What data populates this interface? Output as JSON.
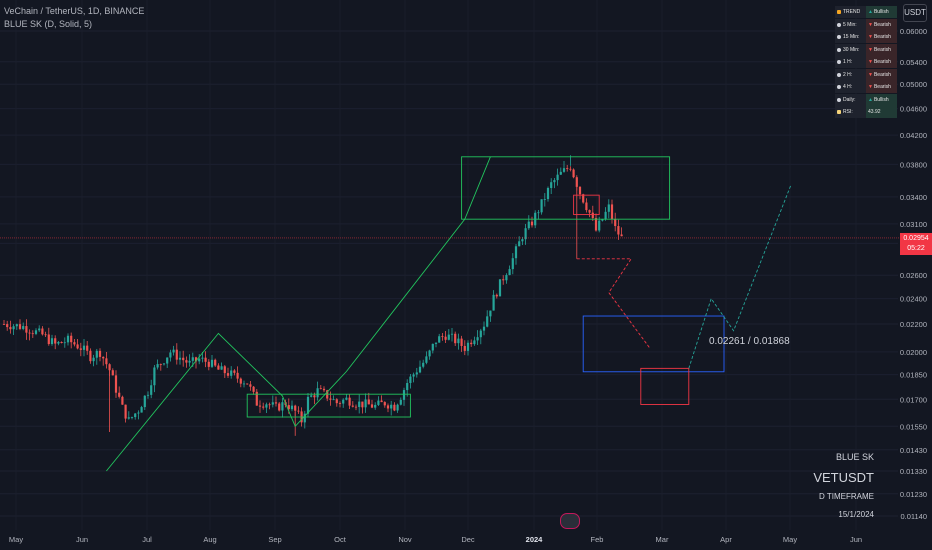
{
  "header": {
    "symbol_line": "VeChain / TetherUS, 1D, BINANCE",
    "indicator_line": "BLUE SK (D, Solid, 5)"
  },
  "currency_button": "USDT",
  "trend_table": [
    {
      "label": "TREND",
      "value": "Bullish",
      "state": "bull",
      "icon": "trend-icon"
    },
    {
      "label": "5 Min:",
      "value": "Bearish",
      "state": "bear",
      "icon": "clock-icon"
    },
    {
      "label": "15 Min:",
      "value": "Bearish",
      "state": "bear",
      "icon": "clock-icon"
    },
    {
      "label": "30 Min:",
      "value": "Bearish",
      "state": "bear",
      "icon": "clock-icon"
    },
    {
      "label": "1 H:",
      "value": "Bearish",
      "state": "bear",
      "icon": "clock-icon"
    },
    {
      "label": "2 H:",
      "value": "Bearish",
      "state": "bear",
      "icon": "clock-icon"
    },
    {
      "label": "4 H:",
      "value": "Bearish",
      "state": "bear",
      "icon": "clock-icon"
    },
    {
      "label": "Daily:",
      "value": "Bullish",
      "state": "bull",
      "icon": "clock-icon"
    },
    {
      "label": "RSI:",
      "value": "43.92",
      "state": "rsi",
      "icon": "hourglass-icon"
    }
  ],
  "current_price": {
    "value": "0.02954",
    "countdown": "05:22"
  },
  "zone_label": "0.02261 / 0.01868",
  "signature": {
    "brand": "BLUE SK",
    "ticker": "VETUSDT",
    "timeframe": "D TIMEFRAME",
    "date": "15/1/2024"
  },
  "colors": {
    "background": "#131722",
    "up": "#26a69a",
    "down": "#ef5350",
    "green_line": "#22c55e",
    "blue_box": "#2962ff",
    "red_box": "#f23645"
  },
  "chart_data": {
    "type": "candlestick",
    "y_axis": {
      "ticks": [
        "0.06000",
        "0.05400",
        "0.05000",
        "0.04600",
        "0.04200",
        "0.03800",
        "0.03400",
        "0.03100",
        "0.02900",
        "0.02600",
        "0.02400",
        "0.02200",
        "0.02000",
        "0.01850",
        "0.01700",
        "0.01550",
        "0.01430",
        "0.01330",
        "0.01230",
        "0.01140"
      ],
      "ylim": [
        0.0112,
        0.065
      ]
    },
    "x_axis": {
      "ticks": [
        "May",
        "Jun",
        "Jul",
        "Aug",
        "Sep",
        "Oct",
        "Nov",
        "Dec",
        "2024",
        "Feb",
        "Mar",
        "Apr",
        "May",
        "Jun"
      ],
      "bold_ticks": [
        "2024"
      ]
    },
    "close_path": [
      [
        0,
        0.022
      ],
      [
        6,
        0.0218
      ],
      [
        12,
        0.0212
      ],
      [
        16,
        0.0205
      ],
      [
        20,
        0.0208
      ],
      [
        24,
        0.0203
      ],
      [
        27,
        0.0197
      ],
      [
        30,
        0.02
      ],
      [
        33,
        0.0188
      ],
      [
        35,
        0.0176
      ],
      [
        37,
        0.0165
      ],
      [
        39,
        0.0158
      ],
      [
        42,
        0.0164
      ],
      [
        45,
        0.0175
      ],
      [
        47,
        0.0188
      ],
      [
        50,
        0.0195
      ],
      [
        52,
        0.02
      ],
      [
        55,
        0.0196
      ],
      [
        58,
        0.0192
      ],
      [
        61,
        0.0195
      ],
      [
        64,
        0.0193
      ],
      [
        67,
        0.0188
      ],
      [
        70,
        0.0186
      ],
      [
        73,
        0.0183
      ],
      [
        76,
        0.018
      ],
      [
        79,
        0.0168
      ],
      [
        82,
        0.0168
      ],
      [
        85,
        0.0165
      ],
      [
        88,
        0.0168
      ],
      [
        91,
        0.0163
      ],
      [
        93,
        0.0158
      ],
      [
        95,
        0.017
      ],
      [
        98,
        0.0175
      ],
      [
        101,
        0.0172
      ],
      [
        104,
        0.0168
      ],
      [
        107,
        0.017
      ],
      [
        110,
        0.0168
      ],
      [
        113,
        0.0167
      ],
      [
        116,
        0.0166
      ],
      [
        119,
        0.0168
      ],
      [
        122,
        0.0166
      ],
      [
        124,
        0.0172
      ],
      [
        126,
        0.018
      ],
      [
        129,
        0.0188
      ],
      [
        132,
        0.0195
      ],
      [
        135,
        0.0208
      ],
      [
        138,
        0.0212
      ],
      [
        141,
        0.0208
      ],
      [
        144,
        0.0203
      ],
      [
        147,
        0.0211
      ],
      [
        150,
        0.022
      ],
      [
        153,
        0.024
      ],
      [
        156,
        0.0258
      ],
      [
        159,
        0.0275
      ],
      [
        162,
        0.0298
      ],
      [
        165,
        0.0312
      ],
      [
        168,
        0.0332
      ],
      [
        171,
        0.0355
      ],
      [
        174,
        0.0368
      ],
      [
        177,
        0.0378
      ],
      [
        180,
        0.0345
      ],
      [
        183,
        0.0322
      ],
      [
        185,
        0.0303
      ],
      [
        187,
        0.0315
      ],
      [
        189,
        0.0328
      ],
      [
        191,
        0.0305
      ],
      [
        193,
        0.0295
      ]
    ],
    "candle_wicks": {
      "low_spikes": [
        [
          33,
          0.0152
        ],
        [
          91,
          0.015
        ],
        [
          179,
          0.0275
        ]
      ],
      "high_spikes": [
        [
          177,
          0.0392
        ]
      ]
    },
    "annotations": {
      "price_line": 0.02954,
      "green_zigzag": [
        [
          32,
          0.0133
        ],
        [
          67,
          0.0213
        ],
        [
          87,
          0.0172
        ],
        [
          91,
          0.0155
        ],
        [
          107,
          0.0187
        ],
        [
          144,
          0.0315
        ],
        [
          152,
          0.039
        ]
      ],
      "green_box_top": {
        "x": [
          143,
          208
        ],
        "y": [
          0.0315,
          0.039
        ]
      },
      "green_box_bottom": {
        "x": [
          76,
          127
        ],
        "y": [
          0.016,
          0.0173
        ]
      },
      "red_box_top": {
        "x": [
          178,
          186
        ],
        "y": [
          0.032,
          0.0342
        ]
      },
      "red_step_path": [
        [
          179,
          0.0275
        ],
        [
          196,
          0.0275
        ],
        [
          189,
          0.0245
        ],
        [
          202,
          0.0202
        ]
      ],
      "blue_zone_box": {
        "x": [
          181,
          225
        ],
        "y": [
          0.01868,
          0.02261
        ]
      },
      "red_target_box": {
        "x": [
          199,
          214
        ],
        "y": [
          0.0167,
          0.0189
        ]
      },
      "green_projection": [
        [
          214,
          0.0189
        ],
        [
          221,
          0.024
        ],
        [
          228,
          0.0215
        ],
        [
          246,
          0.0355
        ]
      ]
    }
  }
}
